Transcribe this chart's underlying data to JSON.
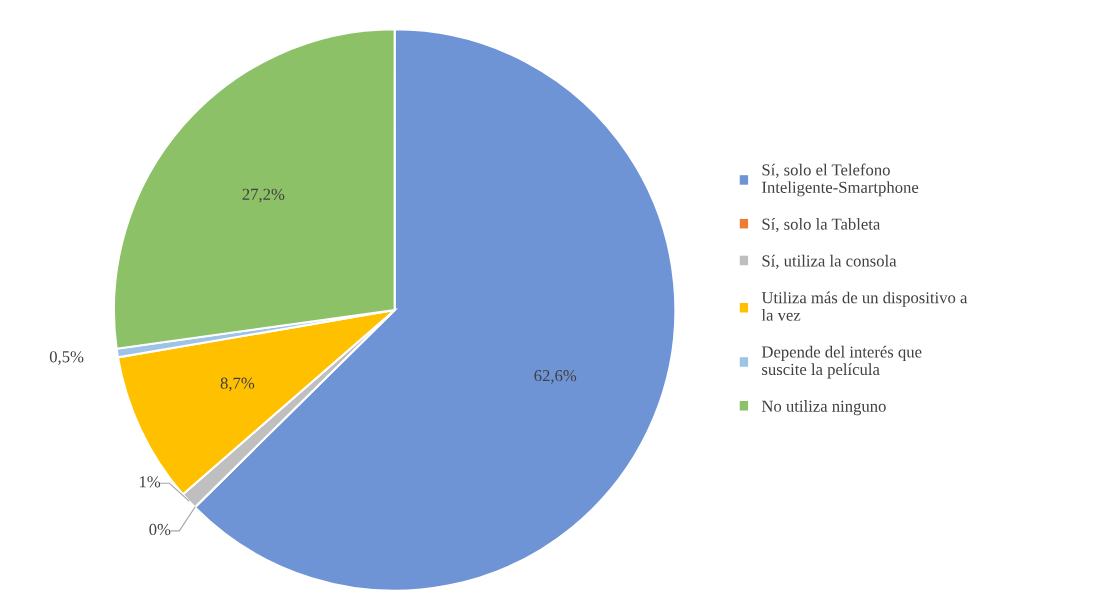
{
  "chart_data": {
    "type": "pie",
    "categories": [
      "Sí, solo el Telefono\nInteligente-Smartphone",
      "Sí, solo la Tableta",
      "Sí, utiliza la consola",
      "Utiliza más de un dispositivo a\nla vez",
      "Depende del interés que\nsuscite la película",
      "No utiliza ninguno"
    ],
    "values": [
      62.6,
      0,
      1,
      8.7,
      0.5,
      27.2
    ],
    "value_labels": [
      "62,6%",
      "0%",
      "1%",
      "8,7%",
      "0,5%",
      "27,2%"
    ],
    "colors": [
      "#6f94d6",
      "#ed7d31",
      "#bfbfbf",
      "#ffc000",
      "#9dc3e6",
      "#8cc168"
    ],
    "legend": "right"
  }
}
